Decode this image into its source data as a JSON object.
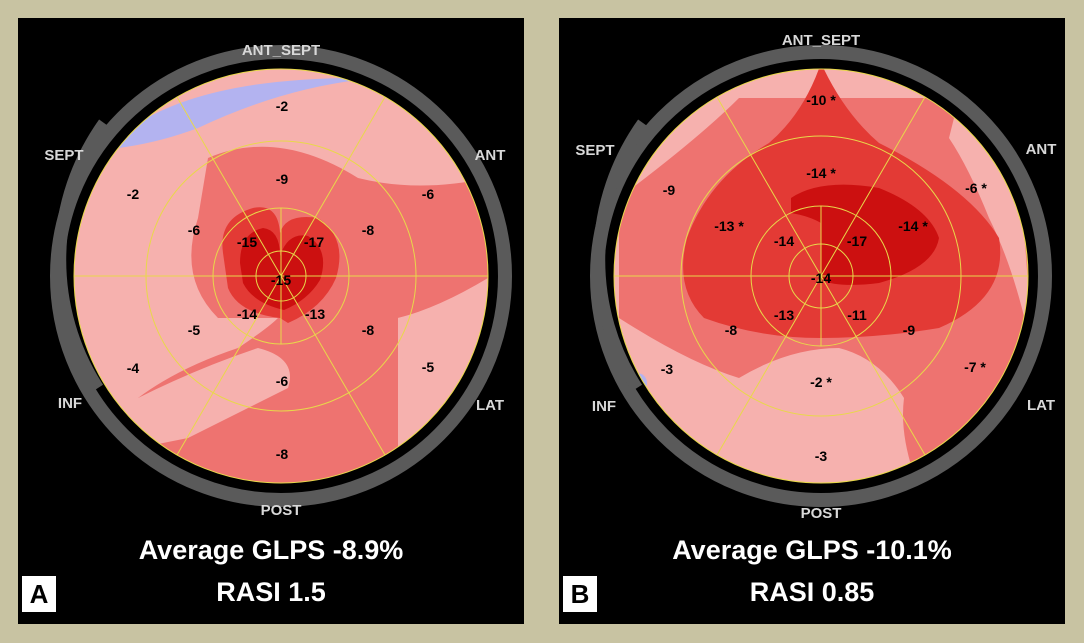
{
  "panels": [
    {
      "tag": "A",
      "directions": {
        "ant_sept": "ANT_SEPT",
        "ant": "ANT",
        "lat": "LAT",
        "post": "POST",
        "inf": "INF",
        "sept": "SEPT"
      },
      "segments": {
        "basal": [
          "-2",
          "-6",
          "-5",
          "-8",
          "-4",
          "-2"
        ],
        "mid": [
          "-9",
          "-8",
          "-8",
          "-6",
          "-5",
          "-6"
        ],
        "apical": [
          "-17",
          "-13",
          "-14",
          "-15"
        ],
        "apex": "-15"
      },
      "caption_line1": "Average GLPS -8.9%",
      "caption_line2": "RASI 1.5"
    },
    {
      "tag": "B",
      "directions": {
        "ant_sept": "ANT_SEPT",
        "ant": "ANT",
        "lat": "LAT",
        "post": "POST",
        "inf": "INF",
        "sept": "SEPT"
      },
      "segments": {
        "basal": [
          "-10 *",
          "-6 *",
          "-7 *",
          "-3",
          "-3",
          "-9"
        ],
        "mid": [
          "-14 *",
          "-14 *",
          "-9",
          "-2 *",
          "-8",
          "-13 *"
        ],
        "apical": [
          "-17",
          "-11",
          "-13",
          "-14"
        ],
        "apex": "-14"
      },
      "caption_line1": "Average GLPS -10.1%",
      "caption_line2": "RASI 0.85"
    }
  ],
  "colors": {
    "background": "#c8c3a2",
    "panel": "#000000",
    "ring": "#5a5a5a",
    "light_pink": "#f6b1ae",
    "medium_red": "#ee7370",
    "red": "#e33a35",
    "dark_red": "#cc1010",
    "blue": "#b3b3f0",
    "grid": "#e8d84a"
  }
}
